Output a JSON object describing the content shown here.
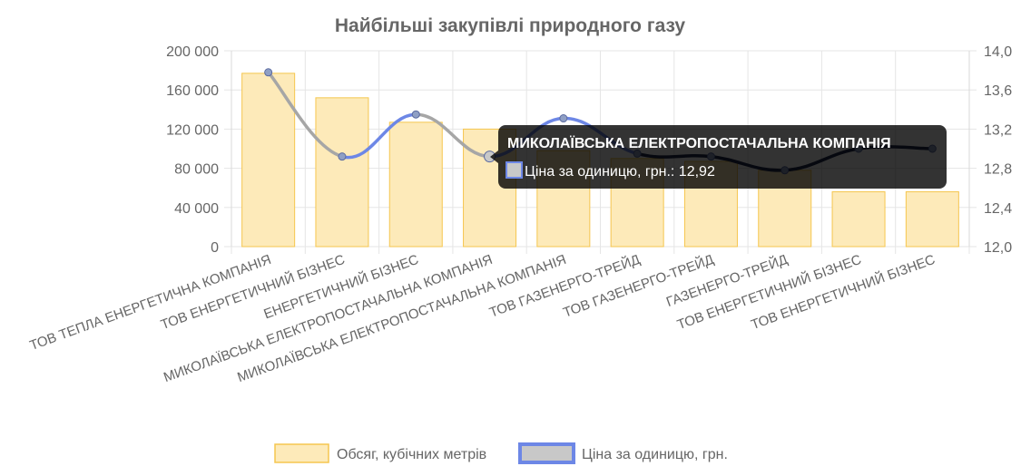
{
  "chart_data": {
    "type": "bar",
    "title": "Найбільші закупівлі природного газу",
    "categories": [
      "ТОВ ТЕПЛА ЕНЕРГЕТИЧНА КОМПАНІЯ",
      "ТОВ ЕНЕРГЕТИЧНИЙ БІЗНЕС",
      "ЕНЕРГЕТИЧНИЙ БІЗНЕС",
      "МИКОЛАЇВСЬКА ЕЛЕКТРОПОСТАЧАЛЬНА КОМПАНІЯ",
      "МИКОЛАЇВСЬКА ЕЛЕКТРОПОСТАЧАЛЬНА КОМПАНІЯ",
      "ТОВ ГАЗЕНЕРГО-ТРЕЙД",
      "ТОВ ГАЗЕНЕРГО-ТРЕЙД",
      "ГАЗЕНЕРГО-ТРЕЙД",
      "ТОВ ЕНЕРГЕТИЧНИЙ БІЗНЕС",
      "ТОВ ЕНЕРГЕТИЧНИЙ БІЗНЕС"
    ],
    "series": [
      {
        "name": "Обсяг, кубічних метрів",
        "type": "bar",
        "axis": "left",
        "values": [
          177000,
          152000,
          127000,
          120000,
          98000,
          90000,
          87000,
          78000,
          56000,
          56000
        ]
      },
      {
        "name": "Ціна за одиницю, грн.",
        "type": "line",
        "axis": "right",
        "values": [
          13.78,
          12.92,
          13.35,
          12.92,
          13.31,
          12.95,
          12.92,
          12.78,
          13.0,
          13.0
        ]
      }
    ],
    "y_left": {
      "ylim": [
        0,
        200000
      ],
      "ticks": [
        0,
        40000,
        80000,
        120000,
        160000,
        200000
      ],
      "tick_labels": [
        "0",
        "40 000",
        "80 000",
        "120 000",
        "160 000",
        "200 000"
      ]
    },
    "y_right": {
      "ylim": [
        12.0,
        14.0
      ],
      "ticks": [
        12.0,
        12.4,
        12.8,
        13.2,
        13.6,
        14.0
      ],
      "tick_labels": [
        "12,0",
        "12,4",
        "12,8",
        "13,2",
        "13,6",
        "14,0"
      ]
    },
    "grid": true,
    "legend": "bottom",
    "colors": {
      "bar_fill": "#fdeab9",
      "bar_border": "#f5c64f",
      "line": "#6d87e6",
      "line_segment_grey": "#a6a6a6",
      "line_segment_dark": "#1f2a4d",
      "point": "#8f9fc4",
      "grid": "#e5e5e5",
      "text": "#666666"
    },
    "tooltip": {
      "category_index": 3,
      "title": "МИКОЛАЇВСЬКА ЕЛЕКТРОПОСТАЧАЛЬНА КОМПАНІЯ",
      "body": "Ціна за одиницю, грн.: 12,92"
    }
  }
}
